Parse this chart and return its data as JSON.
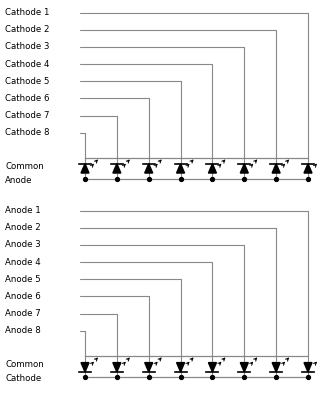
{
  "background": "#ffffff",
  "line_color": "#888888",
  "text_color": "#000000",
  "label_fontsize": 6.2,
  "top_diagram": {
    "labels": [
      "Cathode 1",
      "Cathode 2",
      "Cathode 3",
      "Cathode 4",
      "Cathode 5",
      "Cathode 6",
      "Cathode 7",
      "Cathode 8"
    ],
    "common_line1": "Common",
    "common_line2": "Anode",
    "is_common_anode": true
  },
  "bot_diagram": {
    "labels": [
      "Anode 1",
      "Anode 2",
      "Anode 3",
      "Anode 4",
      "Anode 5",
      "Anode 6",
      "Anode 7",
      "Anode 8"
    ],
    "common_line1": "Common",
    "common_line2": "Cathode",
    "is_common_anode": false
  }
}
